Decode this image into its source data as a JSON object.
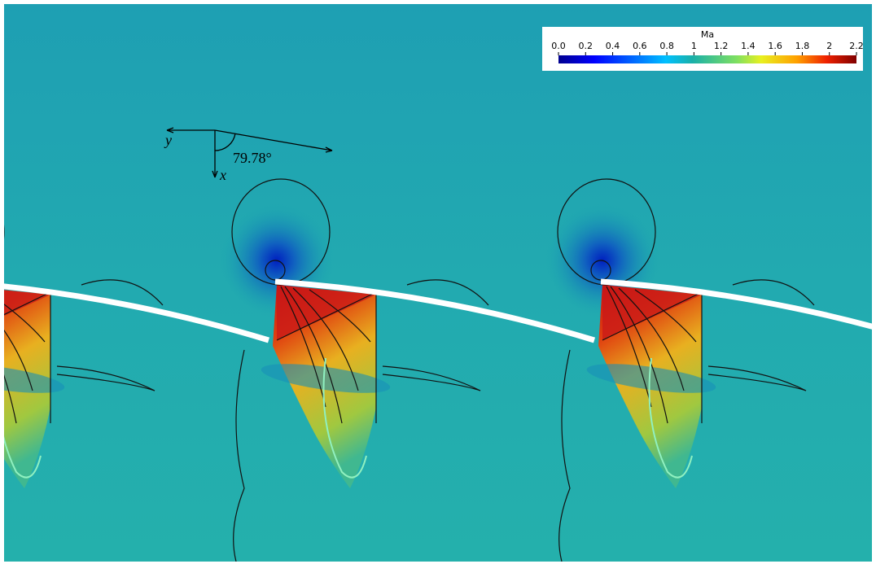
{
  "colorbar": {
    "title": "Ma",
    "lim": [
      0,
      2.2
    ],
    "ticks": [
      {
        "value": 0,
        "label": "0.0"
      },
      0.2,
      0.4,
      0.6,
      0.8,
      1,
      1.2,
      1.4,
      1.6,
      1.8,
      2,
      2.2
    ]
  },
  "annotation": {
    "y_axis": "y",
    "x_axis": "x",
    "angle": "79.78°"
  }
}
